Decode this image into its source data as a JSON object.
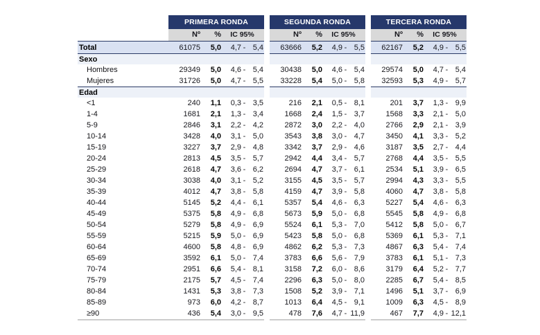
{
  "table": {
    "groups": [
      "PRIMERA RONDA",
      "SEGUNDA RONDA",
      "TERCERA RONDA"
    ],
    "subheaders": [
      "Nº",
      "%",
      "IC 95%"
    ],
    "ci_separator": "-",
    "rows": [
      {
        "type": "total",
        "label": "Total",
        "cells": [
          {
            "n": "61075",
            "pct": "5,0",
            "lo": "4,7",
            "hi": "5,4"
          },
          {
            "n": "63666",
            "pct": "5,2",
            "lo": "4,9",
            "hi": "5,5"
          },
          {
            "n": "62167",
            "pct": "5,2",
            "lo": "4,9",
            "hi": "5,5"
          }
        ]
      },
      {
        "type": "section",
        "label": "Sexo"
      },
      {
        "type": "data",
        "label": "Hombres",
        "cells": [
          {
            "n": "29349",
            "pct": "5,0",
            "lo": "4,6",
            "hi": "5,4"
          },
          {
            "n": "30438",
            "pct": "5,0",
            "lo": "4,6",
            "hi": "5,4"
          },
          {
            "n": "29574",
            "pct": "5,0",
            "lo": "4,7",
            "hi": "5,4"
          }
        ]
      },
      {
        "type": "data",
        "label": "Mujeres",
        "cells": [
          {
            "n": "31726",
            "pct": "5,0",
            "lo": "4,7",
            "hi": "5,5"
          },
          {
            "n": "33228",
            "pct": "5,4",
            "lo": "5,0",
            "hi": "5,8"
          },
          {
            "n": "32593",
            "pct": "5,3",
            "lo": "4,9",
            "hi": "5,7"
          }
        ]
      },
      {
        "type": "section",
        "label": "Edad"
      },
      {
        "type": "data",
        "label": "<1",
        "cells": [
          {
            "n": "240",
            "pct": "1,1",
            "lo": "0,3",
            "hi": "3,5"
          },
          {
            "n": "216",
            "pct": "2,1",
            "lo": "0,5",
            "hi": "8,1"
          },
          {
            "n": "201",
            "pct": "3,7",
            "lo": "1,3",
            "hi": "9,9"
          }
        ]
      },
      {
        "type": "data",
        "label": "1-4",
        "cells": [
          {
            "n": "1681",
            "pct": "2,1",
            "lo": "1,3",
            "hi": "3,4"
          },
          {
            "n": "1668",
            "pct": "2,4",
            "lo": "1,5",
            "hi": "3,7"
          },
          {
            "n": "1568",
            "pct": "3,3",
            "lo": "2,1",
            "hi": "5,0"
          }
        ]
      },
      {
        "type": "data",
        "label": "5-9",
        "cells": [
          {
            "n": "2846",
            "pct": "3,1",
            "lo": "2,2",
            "hi": "4,2"
          },
          {
            "n": "2872",
            "pct": "3,0",
            "lo": "2,2",
            "hi": "4,0"
          },
          {
            "n": "2766",
            "pct": "2,9",
            "lo": "2,1",
            "hi": "3,9"
          }
        ]
      },
      {
        "type": "data",
        "label": "10-14",
        "cells": [
          {
            "n": "3428",
            "pct": "4,0",
            "lo": "3,1",
            "hi": "5,0"
          },
          {
            "n": "3543",
            "pct": "3,8",
            "lo": "3,0",
            "hi": "4,7"
          },
          {
            "n": "3450",
            "pct": "4,1",
            "lo": "3,3",
            "hi": "5,2"
          }
        ]
      },
      {
        "type": "data",
        "label": "15-19",
        "cells": [
          {
            "n": "3227",
            "pct": "3,7",
            "lo": "2,9",
            "hi": "4,8"
          },
          {
            "n": "3342",
            "pct": "3,7",
            "lo": "2,9",
            "hi": "4,6"
          },
          {
            "n": "3187",
            "pct": "3,5",
            "lo": "2,7",
            "hi": "4,4"
          }
        ]
      },
      {
        "type": "data",
        "label": "20-24",
        "cells": [
          {
            "n": "2813",
            "pct": "4,5",
            "lo": "3,5",
            "hi": "5,7"
          },
          {
            "n": "2942",
            "pct": "4,4",
            "lo": "3,4",
            "hi": "5,7"
          },
          {
            "n": "2768",
            "pct": "4,4",
            "lo": "3,5",
            "hi": "5,5"
          }
        ]
      },
      {
        "type": "data",
        "label": "25-29",
        "cells": [
          {
            "n": "2618",
            "pct": "4,7",
            "lo": "3,6",
            "hi": "6,2"
          },
          {
            "n": "2694",
            "pct": "4,7",
            "lo": "3,7",
            "hi": "6,1"
          },
          {
            "n": "2534",
            "pct": "5,1",
            "lo": "3,9",
            "hi": "6,5"
          }
        ]
      },
      {
        "type": "data",
        "label": "30-34",
        "cells": [
          {
            "n": "3038",
            "pct": "4,0",
            "lo": "3,1",
            "hi": "5,2"
          },
          {
            "n": "3155",
            "pct": "4,5",
            "lo": "3,5",
            "hi": "5,7"
          },
          {
            "n": "2994",
            "pct": "4,3",
            "lo": "3,3",
            "hi": "5,5"
          }
        ]
      },
      {
        "type": "data",
        "label": "35-39",
        "cells": [
          {
            "n": "4012",
            "pct": "4,7",
            "lo": "3,8",
            "hi": "5,8"
          },
          {
            "n": "4159",
            "pct": "4,7",
            "lo": "3,9",
            "hi": "5,8"
          },
          {
            "n": "4060",
            "pct": "4,7",
            "lo": "3,8",
            "hi": "5,8"
          }
        ]
      },
      {
        "type": "data",
        "label": "40-44",
        "cells": [
          {
            "n": "5145",
            "pct": "5,2",
            "lo": "4,4",
            "hi": "6,1"
          },
          {
            "n": "5357",
            "pct": "5,4",
            "lo": "4,6",
            "hi": "6,3"
          },
          {
            "n": "5227",
            "pct": "5,4",
            "lo": "4,6",
            "hi": "6,3"
          }
        ]
      },
      {
        "type": "data",
        "label": "45-49",
        "cells": [
          {
            "n": "5375",
            "pct": "5,8",
            "lo": "4,9",
            "hi": "6,8"
          },
          {
            "n": "5673",
            "pct": "5,9",
            "lo": "5,0",
            "hi": "6,8"
          },
          {
            "n": "5545",
            "pct": "5,8",
            "lo": "4,9",
            "hi": "6,8"
          }
        ]
      },
      {
        "type": "data",
        "label": "50-54",
        "cells": [
          {
            "n": "5279",
            "pct": "5,8",
            "lo": "4,9",
            "hi": "6,9"
          },
          {
            "n": "5524",
            "pct": "6,1",
            "lo": "5,3",
            "hi": "7,0"
          },
          {
            "n": "5412",
            "pct": "5,8",
            "lo": "5,0",
            "hi": "6,7"
          }
        ]
      },
      {
        "type": "data",
        "label": "55-59",
        "cells": [
          {
            "n": "5215",
            "pct": "5,9",
            "lo": "5,0",
            "hi": "6,9"
          },
          {
            "n": "5423",
            "pct": "5,8",
            "lo": "5,0",
            "hi": "6,8"
          },
          {
            "n": "5369",
            "pct": "6,1",
            "lo": "5,3",
            "hi": "7,1"
          }
        ]
      },
      {
        "type": "data",
        "label": "60-64",
        "cells": [
          {
            "n": "4600",
            "pct": "5,8",
            "lo": "4,8",
            "hi": "6,9"
          },
          {
            "n": "4862",
            "pct": "6,2",
            "lo": "5,3",
            "hi": "7,3"
          },
          {
            "n": "4867",
            "pct": "6,3",
            "lo": "5,4",
            "hi": "7,4"
          }
        ]
      },
      {
        "type": "data",
        "label": "65-69",
        "cells": [
          {
            "n": "3592",
            "pct": "6,1",
            "lo": "5,0",
            "hi": "7,4"
          },
          {
            "n": "3783",
            "pct": "6,6",
            "lo": "5,6",
            "hi": "7,9"
          },
          {
            "n": "3783",
            "pct": "6,1",
            "lo": "5,1",
            "hi": "7,3"
          }
        ]
      },
      {
        "type": "data",
        "label": "70-74",
        "cells": [
          {
            "n": "2951",
            "pct": "6,6",
            "lo": "5,4",
            "hi": "8,1"
          },
          {
            "n": "3158",
            "pct": "7,2",
            "lo": "6,0",
            "hi": "8,6"
          },
          {
            "n": "3179",
            "pct": "6,4",
            "lo": "5,2",
            "hi": "7,7"
          }
        ]
      },
      {
        "type": "data",
        "label": "75-79",
        "cells": [
          {
            "n": "2175",
            "pct": "5,7",
            "lo": "4,5",
            "hi": "7,4"
          },
          {
            "n": "2296",
            "pct": "6,3",
            "lo": "5,0",
            "hi": "8,0"
          },
          {
            "n": "2285",
            "pct": "6,7",
            "lo": "5,4",
            "hi": "8,5"
          }
        ]
      },
      {
        "type": "data",
        "label": "80-84",
        "cells": [
          {
            "n": "1431",
            "pct": "5,3",
            "lo": "3,8",
            "hi": "7,3"
          },
          {
            "n": "1508",
            "pct": "5,2",
            "lo": "3,9",
            "hi": "7,1"
          },
          {
            "n": "1496",
            "pct": "5,1",
            "lo": "3,7",
            "hi": "6,9"
          }
        ]
      },
      {
        "type": "data",
        "label": "85-89",
        "cells": [
          {
            "n": "973",
            "pct": "6,0",
            "lo": "4,2",
            "hi": "8,7"
          },
          {
            "n": "1013",
            "pct": "6,4",
            "lo": "4,5",
            "hi": "9,1"
          },
          {
            "n": "1009",
            "pct": "6,3",
            "lo": "4,5",
            "hi": "8,9"
          }
        ]
      },
      {
        "type": "data",
        "label": "≥90",
        "cells": [
          {
            "n": "436",
            "pct": "5,4",
            "lo": "3,0",
            "hi": "9,5"
          },
          {
            "n": "478",
            "pct": "7,6",
            "lo": "4,7",
            "hi": "11,9"
          },
          {
            "n": "467",
            "pct": "7,7",
            "lo": "4,9",
            "hi": "12,1"
          }
        ]
      }
    ]
  },
  "colors": {
    "group_header_bg": "#26386b",
    "group_header_text": "#ffffff",
    "subheader_bg": "#d9d9d9",
    "total_row_bg": "#d9e1f2",
    "section_row_bg": "#edf1f8",
    "section_rule": "#2a3a66",
    "bottom_rule": "#cccccc"
  }
}
